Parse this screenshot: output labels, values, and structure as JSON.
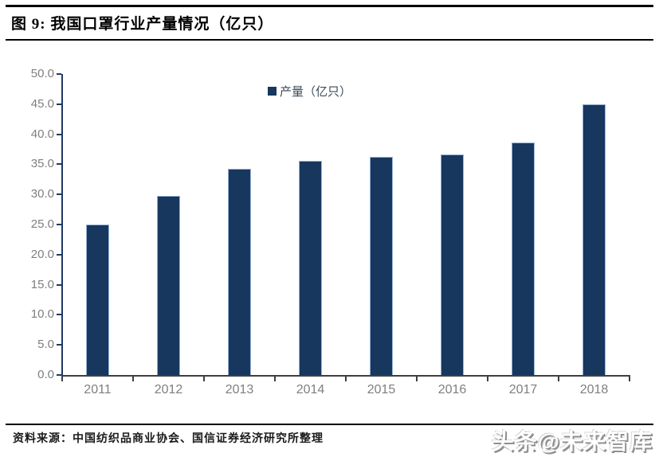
{
  "figure": {
    "title": "图 9: 我国口罩行业产量情况（亿只）",
    "source_note": "资料来源：中国纺织品商业协会、国信证券经济研究所整理",
    "watermark": "头条@未来智库"
  },
  "legend": {
    "label": "产量（亿只）",
    "swatch_icon": "legend-square-swatch"
  },
  "chart_data": {
    "type": "bar",
    "title": "图 9: 我国口罩行业产量情况（亿只）",
    "categories": [
      "2011",
      "2012",
      "2013",
      "2014",
      "2015",
      "2016",
      "2017",
      "2018"
    ],
    "series": [
      {
        "name": "产量（亿只）",
        "values": [
          25.0,
          29.7,
          34.3,
          35.6,
          36.3,
          36.6,
          38.6,
          45.0
        ]
      }
    ],
    "xlabel": "",
    "ylabel": "",
    "ylim": [
      0,
      50
    ],
    "ytick_step": 5,
    "ytick_labels": [
      "0.0",
      "5.0",
      "10.0",
      "15.0",
      "20.0",
      "25.0",
      "30.0",
      "35.0",
      "40.0",
      "45.0",
      "50.0"
    ],
    "grid": false,
    "legend_position": "top-center",
    "colors": {
      "bar_fill": "#17375E",
      "bar_border": "#95B3D7",
      "y_axis": "#1F3864",
      "x_axis": "#3f3f3f",
      "tick_label": "#7f7f7f",
      "title_text": "#000000",
      "rule": "#000000"
    }
  }
}
